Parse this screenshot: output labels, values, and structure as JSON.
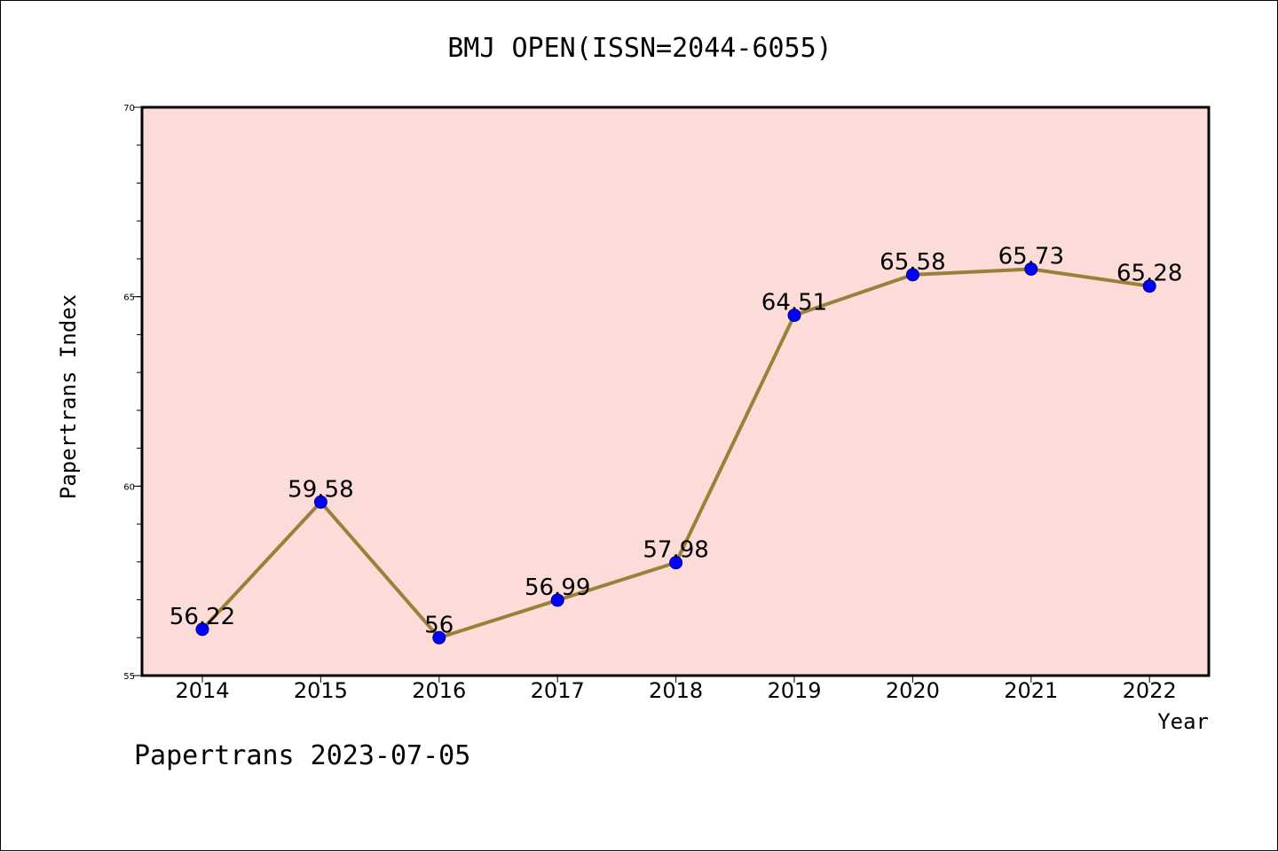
{
  "chart_data": {
    "type": "line",
    "title": "BMJ OPEN(ISSN=2044-6055)",
    "xlabel": "Year",
    "ylabel": "Papertrans Index",
    "categories": [
      "2014",
      "2015",
      "2016",
      "2017",
      "2018",
      "2019",
      "2020",
      "2021",
      "2022"
    ],
    "values": [
      56.22,
      59.58,
      56,
      56.99,
      57.98,
      64.51,
      65.58,
      65.73,
      65.28
    ],
    "value_labels": [
      "56.22",
      "59.58",
      "56",
      "56.99",
      "57.98",
      "64.51",
      "65.58",
      "65.73",
      "65.28"
    ],
    "ylim": [
      55,
      70
    ],
    "yticks": [
      55,
      60,
      65,
      70
    ],
    "grid": false,
    "legend": "none",
    "colors": {
      "plot_background": "#fcdcd9",
      "line": "#9a8038",
      "marker": "#0000ff",
      "marker_edge": "#000080"
    }
  },
  "footer": "Papertrans 2023-07-05"
}
